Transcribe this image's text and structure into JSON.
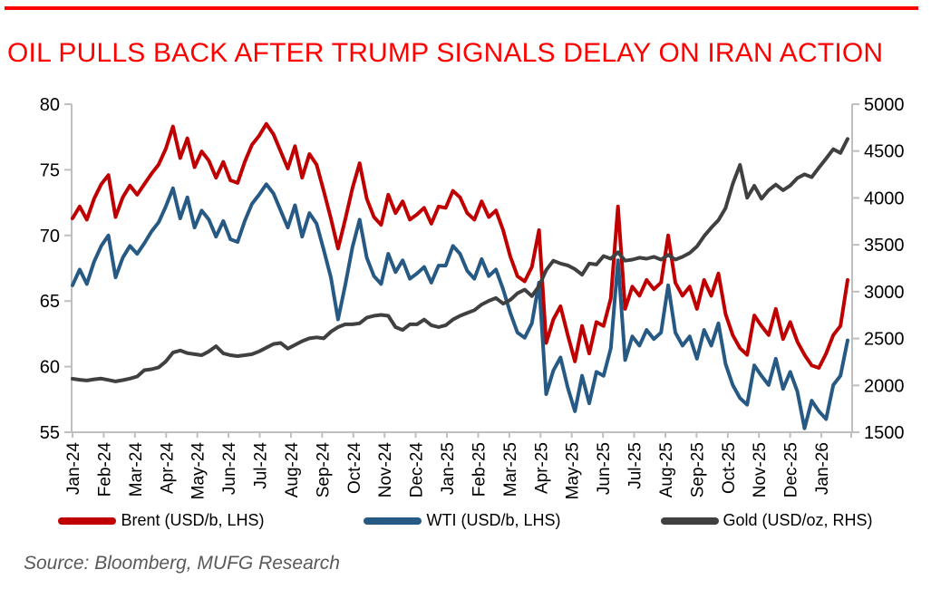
{
  "title": "OIL PULLS BACK AFTER TRUMP SIGNALS DELAY ON IRAN ACTION",
  "source": "Source: Bloomberg, MUFG Research",
  "colors": {
    "accent_bar": "#FF0000",
    "title_red": "#FF0000",
    "axis_line": "#BFBFBF",
    "tick_label": "#000000",
    "source_text": "#595959"
  },
  "chart_data": {
    "type": "line",
    "title": "OIL PULLS BACK AFTER TRUMP SIGNALS DELAY ON IRAN ACTION",
    "grid": false,
    "legend_position": "bottom",
    "x_categories": [
      "Jan-24",
      "Feb-24",
      "Mar-24",
      "Apr-24",
      "May-24",
      "Jun-24",
      "Jul-24",
      "Aug-24",
      "Sep-24",
      "Oct-24",
      "Nov-24",
      "Dec-24",
      "Jan-25",
      "Feb-25",
      "Mar-25",
      "Apr-25",
      "May-25",
      "Jun-25",
      "Jul-25",
      "Aug-25",
      "Sep-25",
      "Oct-25",
      "Nov-25",
      "Dec-25",
      "Jan-26"
    ],
    "left_axis": {
      "min": 55,
      "max": 80,
      "step": 5,
      "ticks": [
        80,
        75,
        70,
        65,
        60,
        55
      ],
      "units": "USD/b"
    },
    "right_axis": {
      "min": 1500,
      "max": 5000,
      "step": 500,
      "ticks": [
        5000,
        4500,
        4000,
        3500,
        3000,
        2500,
        2000,
        1500
      ],
      "units": "USD/oz"
    },
    "series": [
      {
        "name": "Brent",
        "legend_label": "Brent (USD/b, LHS)",
        "axis": "left",
        "color": "#C00000",
        "values": [
          71.3,
          72.2,
          71.2,
          72.8,
          73.9,
          74.6,
          71.4,
          72.9,
          73.8,
          73.1,
          73.9,
          74.7,
          75.4,
          76.6,
          78.3,
          75.9,
          77.4,
          75.2,
          76.4,
          75.7,
          74.4,
          75.6,
          74.2,
          74.0,
          75.6,
          76.9,
          77.6,
          78.5,
          77.7,
          76.4,
          75.1,
          76.8,
          74.4,
          76.2,
          75.4,
          73.4,
          71.3,
          69.0,
          71.2,
          73.6,
          75.5,
          72.8,
          71.4,
          70.8,
          73.1,
          71.7,
          72.6,
          71.2,
          71.6,
          72.1,
          70.9,
          72.2,
          72.1,
          73.4,
          72.9,
          71.7,
          71.2,
          72.6,
          71.4,
          71.9,
          70.4,
          68.4,
          66.9,
          66.5,
          67.6,
          70.4,
          61.8,
          63.6,
          64.6,
          62.4,
          60.4,
          63.1,
          61.0,
          63.4,
          63.1,
          65.2,
          72.2,
          64.4,
          66.1,
          65.4,
          66.6,
          65.9,
          66.4,
          70.0,
          66.4,
          65.4,
          66.1,
          64.4,
          66.6,
          65.4,
          67.1,
          64.0,
          62.4,
          61.4,
          60.9,
          63.9,
          63.1,
          62.4,
          64.4,
          62.1,
          63.4,
          61.9,
          60.9,
          60.1,
          59.9,
          61.0,
          62.4,
          63.1,
          66.6
        ]
      },
      {
        "name": "WTI",
        "legend_label": "WTI (USD/b, LHS)",
        "axis": "left",
        "color": "#265A84",
        "values": [
          66.2,
          67.4,
          66.3,
          68.0,
          69.2,
          70.0,
          66.8,
          68.3,
          69.2,
          68.6,
          69.4,
          70.3,
          71.0,
          72.2,
          73.6,
          71.3,
          72.9,
          70.6,
          71.9,
          71.2,
          69.9,
          71.1,
          69.7,
          69.5,
          71.1,
          72.4,
          73.1,
          73.9,
          73.2,
          71.9,
          70.6,
          72.3,
          69.9,
          71.7,
          70.9,
          68.9,
          66.8,
          63.6,
          66.2,
          69.1,
          71.2,
          68.3,
          66.9,
          66.3,
          68.6,
          67.2,
          68.1,
          66.7,
          67.1,
          67.6,
          66.4,
          67.7,
          67.7,
          69.2,
          68.6,
          67.3,
          66.7,
          68.2,
          66.9,
          67.4,
          65.9,
          64.1,
          62.6,
          62.2,
          63.3,
          66.4,
          57.9,
          59.7,
          60.7,
          58.4,
          56.6,
          59.3,
          57.2,
          59.6,
          59.3,
          61.4,
          68.1,
          60.5,
          62.3,
          61.6,
          62.8,
          62.1,
          62.6,
          66.2,
          62.6,
          61.6,
          62.3,
          60.6,
          62.8,
          61.6,
          63.3,
          60.2,
          58.6,
          57.6,
          57.1,
          60.1,
          59.3,
          58.6,
          60.6,
          58.3,
          59.6,
          58.1,
          55.3,
          57.4,
          56.6,
          56.0,
          58.6,
          59.3,
          62.0
        ]
      },
      {
        "name": "Gold",
        "legend_label": "Gold (USD/oz, RHS)",
        "axis": "right",
        "color": "#404040",
        "values": [
          2070,
          2060,
          2052,
          2065,
          2072,
          2058,
          2042,
          2056,
          2072,
          2095,
          2162,
          2172,
          2192,
          2255,
          2350,
          2372,
          2344,
          2332,
          2322,
          2362,
          2418,
          2342,
          2322,
          2312,
          2322,
          2332,
          2362,
          2402,
          2442,
          2452,
          2392,
          2432,
          2472,
          2502,
          2512,
          2502,
          2572,
          2622,
          2652,
          2652,
          2662,
          2722,
          2742,
          2752,
          2742,
          2622,
          2592,
          2652,
          2652,
          2702,
          2642,
          2622,
          2642,
          2702,
          2742,
          2772,
          2802,
          2862,
          2902,
          2932,
          2872,
          2912,
          2982,
          3022,
          2952,
          3060,
          3230,
          3330,
          3300,
          3280,
          3240,
          3180,
          3300,
          3290,
          3380,
          3352,
          3420,
          3330,
          3342,
          3362,
          3352,
          3372,
          3342,
          3392,
          3342,
          3372,
          3412,
          3482,
          3592,
          3682,
          3762,
          3892,
          4150,
          4352,
          4002,
          4130,
          3992,
          4082,
          4142,
          4082,
          4132,
          4212,
          4252,
          4222,
          4322,
          4420,
          4520,
          4480,
          4630
        ]
      }
    ]
  }
}
